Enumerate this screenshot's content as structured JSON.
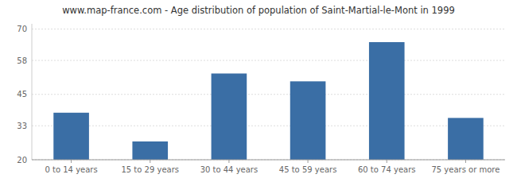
{
  "chart_data": {
    "type": "bar",
    "title": "www.map-france.com - Age distribution of population of Saint-Martial-le-Mont in 1999",
    "categories": [
      "0 to 14 years",
      "15 to 29 years",
      "30 to 44 years",
      "45 to 59 years",
      "60 to 74 years",
      "75 years or more"
    ],
    "values": [
      38,
      27,
      53,
      50,
      65,
      36
    ],
    "color": "#3a6ea5",
    "ylim": [
      20,
      72
    ],
    "yticks": [
      20,
      33,
      45,
      58,
      70
    ],
    "grid": true
  }
}
